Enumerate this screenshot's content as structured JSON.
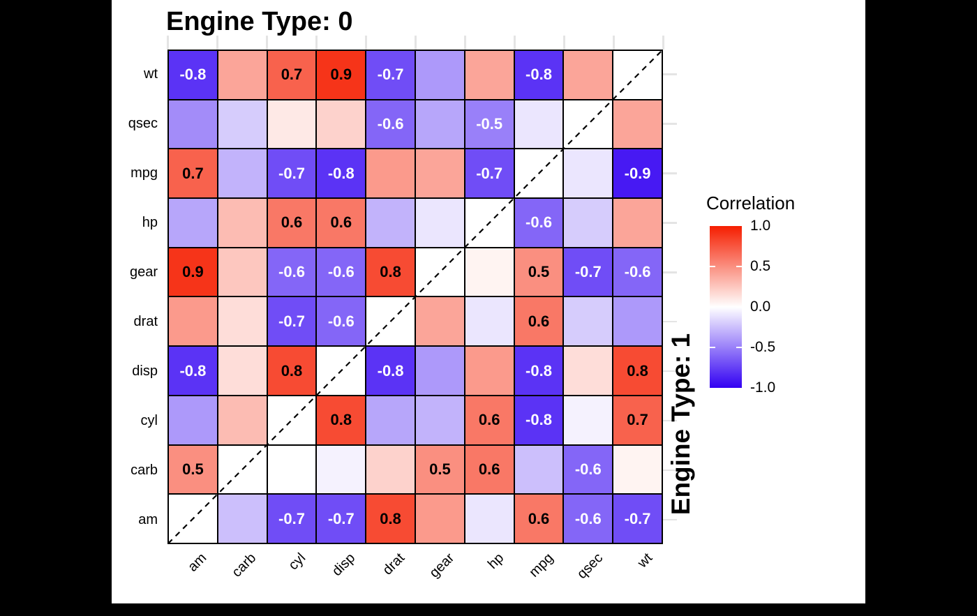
{
  "chart_data": {
    "type": "heatmap",
    "facet_top_title": "Engine Type: 0",
    "facet_right_title": "Engine Type: 1",
    "x_categories": [
      "am",
      "carb",
      "cyl",
      "disp",
      "drat",
      "gear",
      "hp",
      "mpg",
      "qsec",
      "wt"
    ],
    "y_categories_top_to_bottom": [
      "wt",
      "qsec",
      "mpg",
      "hp",
      "gear",
      "drat",
      "disp",
      "cyl",
      "carb",
      "am"
    ],
    "label_threshold": 0.5,
    "diagonal_line": "dashed black line from bottom-left to top-right through the null diagonal cells",
    "matrix": [
      [
        -0.8,
        0.4,
        0.7,
        0.9,
        -0.7,
        -0.4,
        0.4,
        -0.8,
        0.4,
        null
      ],
      [
        -0.45,
        -0.2,
        0.1,
        0.2,
        -0.6,
        -0.35,
        -0.5,
        -0.1,
        null,
        0.4
      ],
      [
        0.7,
        -0.3,
        -0.7,
        -0.8,
        0.45,
        0.4,
        -0.7,
        null,
        -0.1,
        -0.9
      ],
      [
        -0.35,
        0.3,
        0.6,
        0.6,
        -0.3,
        -0.1,
        null,
        -0.6,
        -0.2,
        0.4
      ],
      [
        0.9,
        0.25,
        -0.6,
        -0.6,
        0.8,
        null,
        0.05,
        0.5,
        -0.7,
        -0.6
      ],
      [
        0.45,
        0.15,
        -0.7,
        -0.6,
        null,
        0.4,
        -0.1,
        0.6,
        -0.2,
        -0.4
      ],
      [
        -0.8,
        0.15,
        0.8,
        null,
        -0.8,
        -0.4,
        0.45,
        -0.8,
        0.15,
        0.8
      ],
      [
        -0.4,
        0.3,
        null,
        0.8,
        -0.35,
        -0.3,
        0.6,
        -0.8,
        -0.05,
        0.7
      ],
      [
        0.5,
        null,
        0.0,
        -0.05,
        0.2,
        0.5,
        0.6,
        -0.25,
        -0.6,
        0.05
      ],
      [
        null,
        -0.25,
        -0.7,
        -0.7,
        0.8,
        0.45,
        -0.1,
        0.6,
        -0.6,
        -0.7
      ]
    ],
    "legend": {
      "title": "Correlation",
      "tick_labels": [
        "1.0",
        "0.5",
        "0.0",
        "-0.5",
        "-1.0"
      ],
      "tick_values": [
        1.0,
        0.5,
        0.0,
        -0.5,
        -1.0
      ],
      "high_color": "#f51e00",
      "mid_color": "#ffffff",
      "low_color": "#3200f2",
      "position": "right"
    },
    "colors": {
      "positive_anchor": "#f51e00",
      "negative_anchor": "#3200f2",
      "label_on_positive": "#000000",
      "label_on_negative": "#ffffff",
      "cell_border": "#000000",
      "axis_tick": "#e4e4e4"
    }
  }
}
